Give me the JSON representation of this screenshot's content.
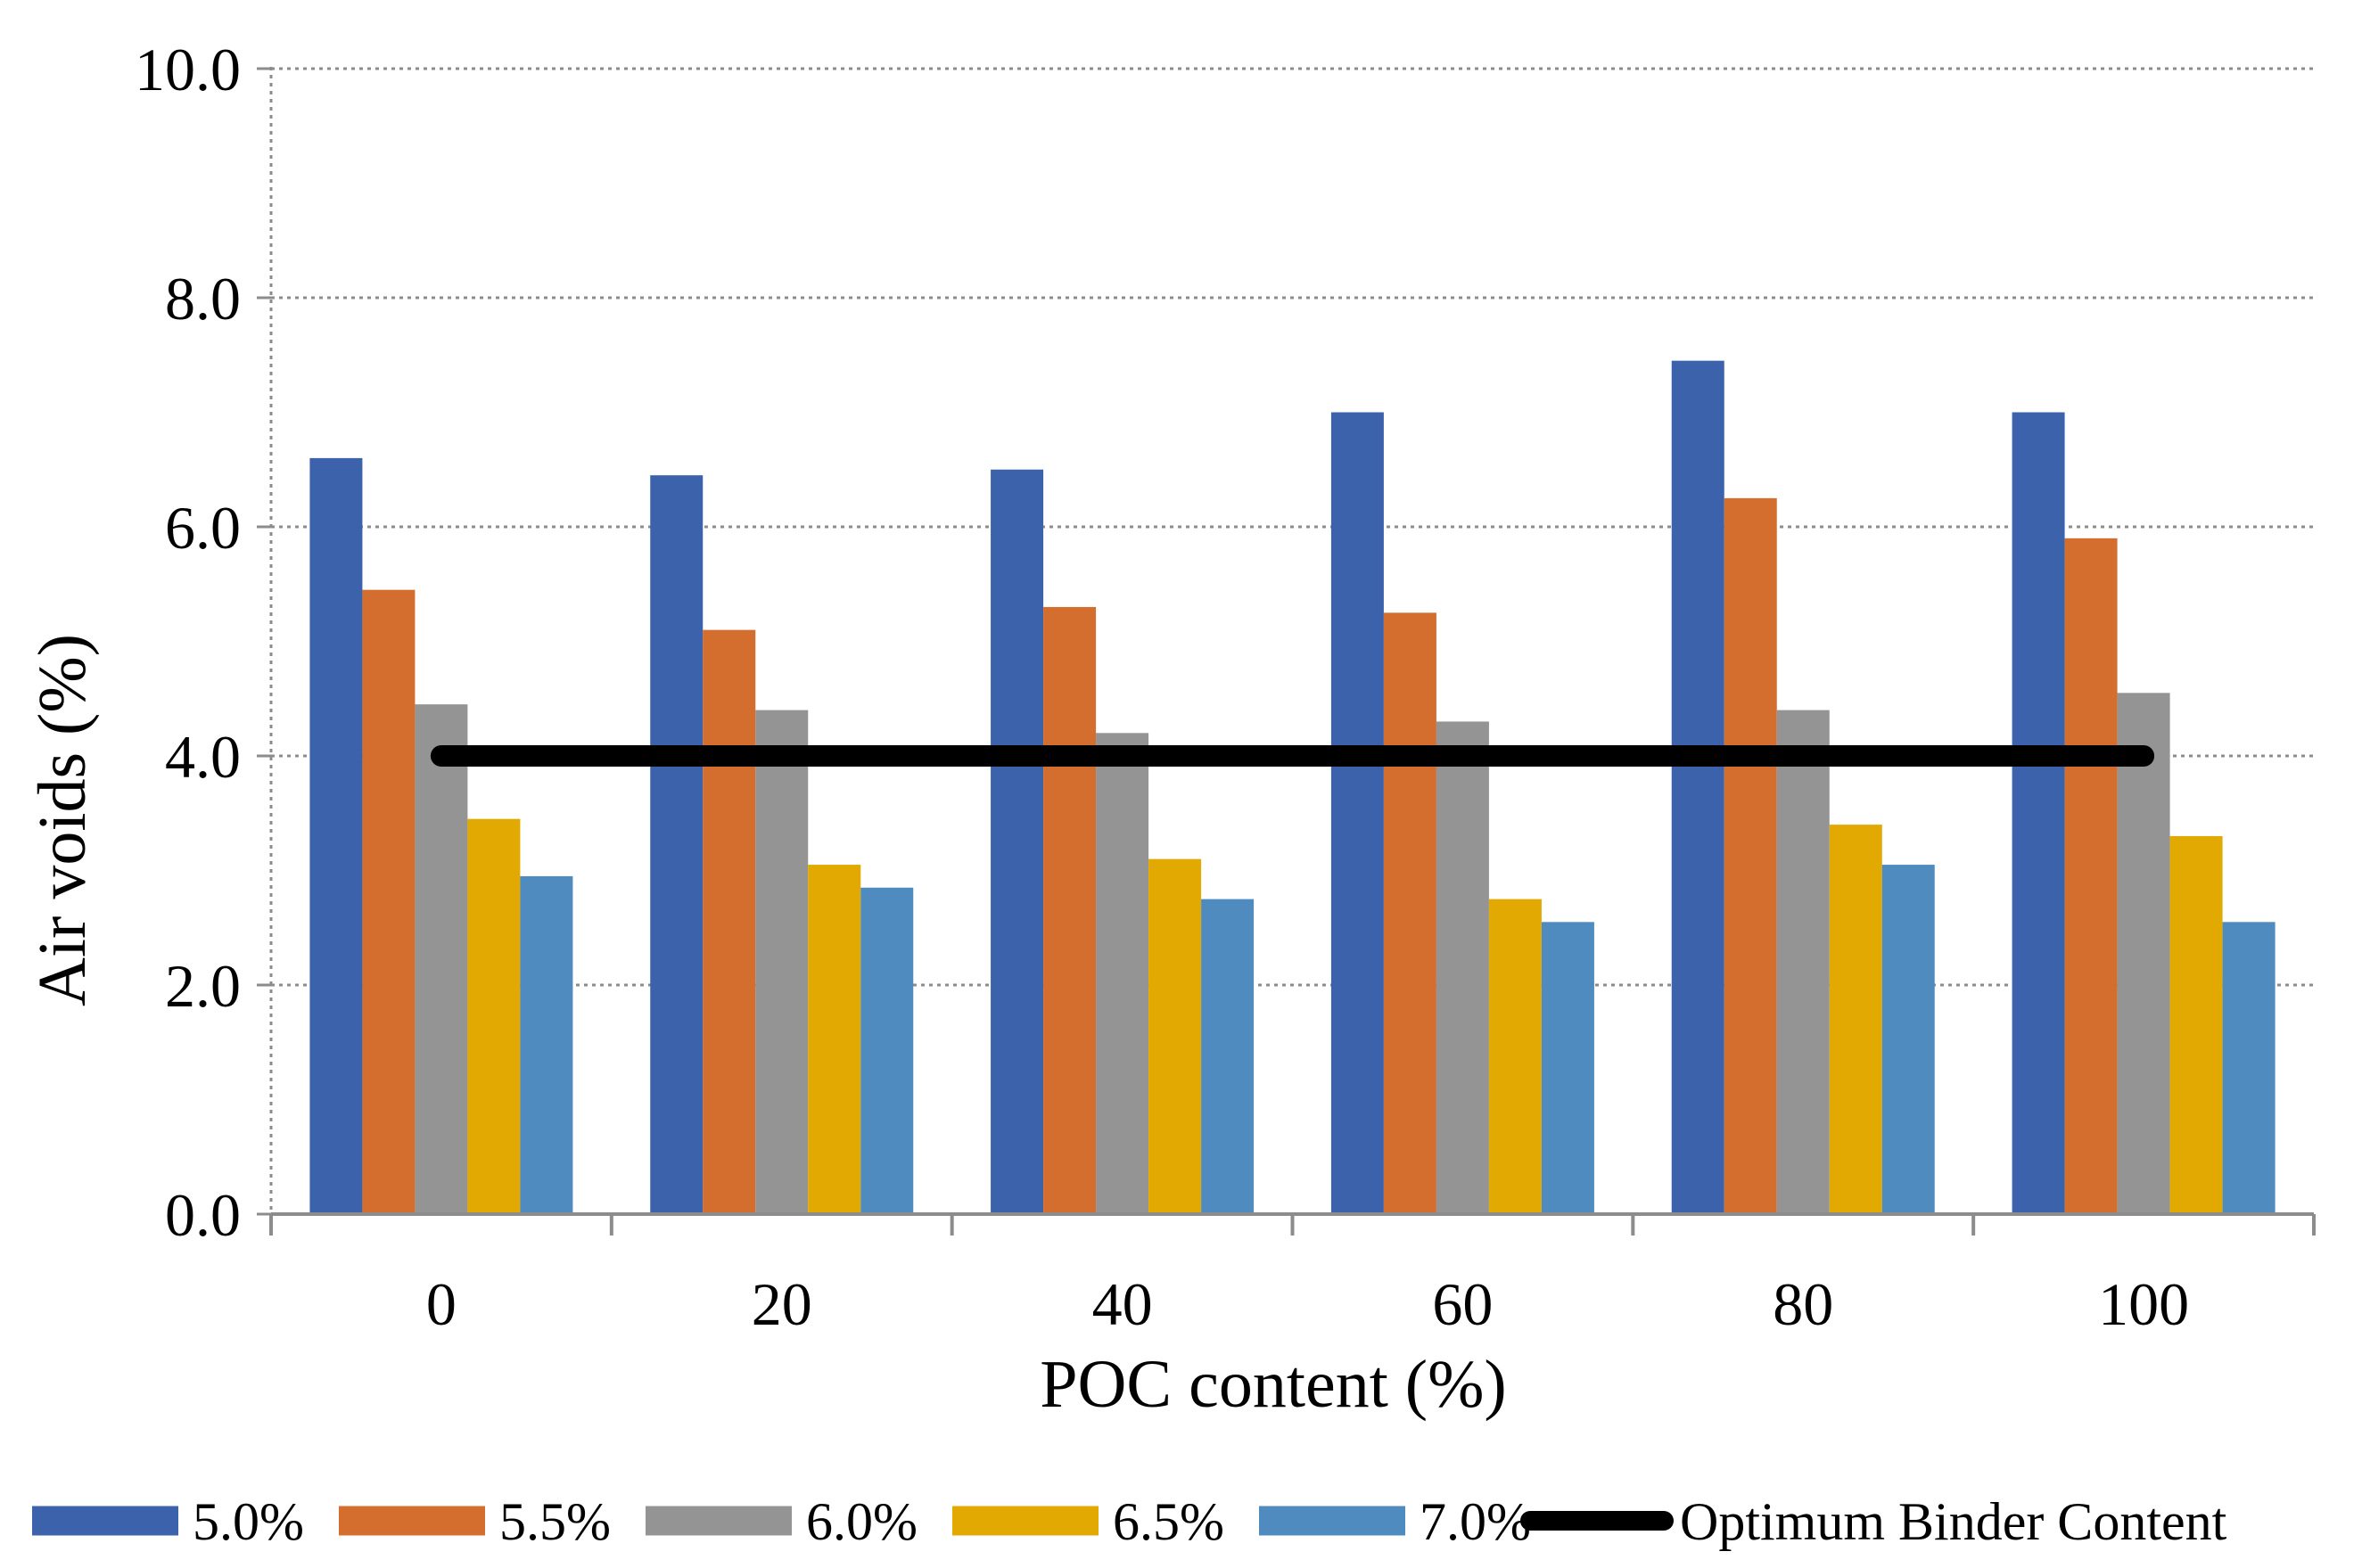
{
  "chart_data": {
    "type": "bar",
    "title": "",
    "xlabel": "POC content (%)",
    "ylabel": "Air voids (%)",
    "ylim": [
      0,
      10
    ],
    "yticks": [
      "0.0",
      "2.0",
      "4.0",
      "6.0",
      "8.0",
      "10.0"
    ],
    "categories": [
      "0",
      "20",
      "40",
      "60",
      "80",
      "100"
    ],
    "grid": "horizontal dotted",
    "legend_position": "bottom",
    "series": [
      {
        "name": "5.0%",
        "color": "#3c62ab",
        "values": [
          6.6,
          6.45,
          6.5,
          7.0,
          7.45,
          7.0
        ]
      },
      {
        "name": "5.5%",
        "color": "#d36e2e",
        "values": [
          5.45,
          5.1,
          5.3,
          5.25,
          6.25,
          5.9
        ]
      },
      {
        "name": "6.0%",
        "color": "#949494",
        "values": [
          4.45,
          4.4,
          4.2,
          4.3,
          4.4,
          4.55
        ]
      },
      {
        "name": "6.5%",
        "color": "#e1a901",
        "values": [
          3.45,
          3.05,
          3.1,
          2.75,
          3.4,
          3.3
        ]
      },
      {
        "name": "7.0%",
        "color": "#4f8bbf",
        "values": [
          2.95,
          2.85,
          2.75,
          2.55,
          3.05,
          2.55
        ]
      }
    ],
    "reference_line": {
      "name": "Optimum Binder Content",
      "color": "#000000",
      "value": 4.0
    }
  }
}
